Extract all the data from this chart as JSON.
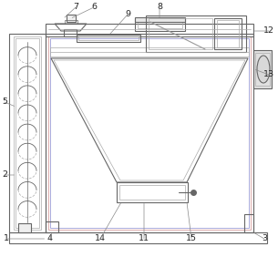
{
  "bg_color": "#ffffff",
  "lc": "#666666",
  "lc2": "#aaaaaa",
  "lc3": "#999999",
  "lw": 0.8,
  "lw2": 0.5,
  "fig_w": 3.05,
  "fig_h": 2.82,
  "dpi": 100
}
